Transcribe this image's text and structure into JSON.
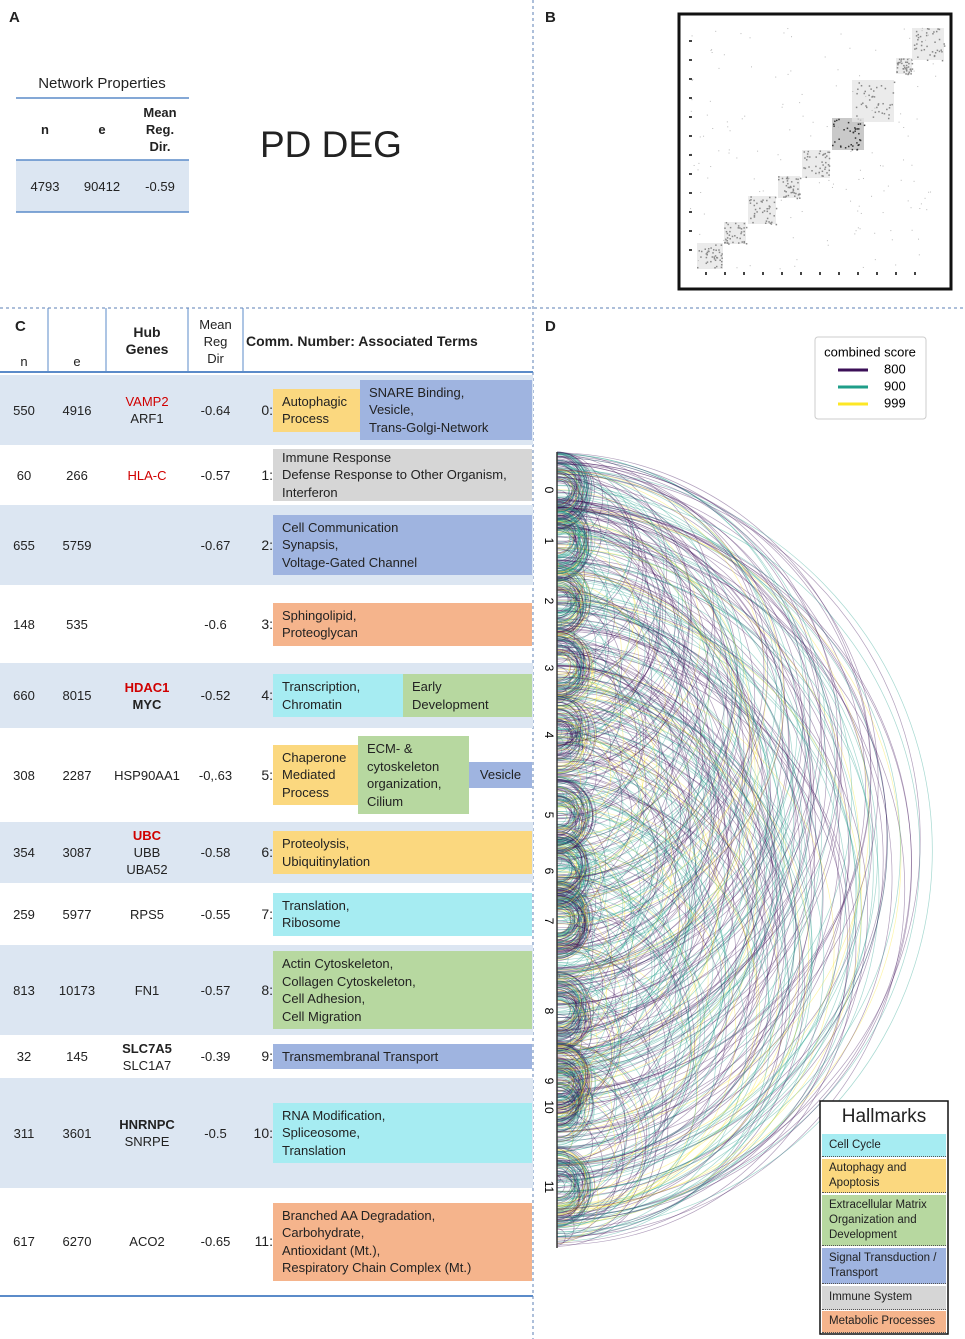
{
  "panel_a": {
    "label": "A",
    "table_title": "Network Properties",
    "headers": [
      [
        "n"
      ],
      [
        "e"
      ],
      [
        "Mean",
        "Reg.",
        "Dir."
      ]
    ],
    "values": [
      4793,
      90412,
      -0.59
    ],
    "network_name": "PD DEG"
  },
  "panel_b": {
    "label": "B"
  },
  "panel_c": {
    "label": "C",
    "headers": {
      "n": "n",
      "e": "e",
      "hub": [
        "Hub",
        "Genes"
      ],
      "mean": [
        "Mean",
        "Reg",
        "Dir"
      ],
      "terms": "Comm. Number: Associated Terms"
    },
    "rows": [
      {
        "n": 550,
        "e": 4916,
        "hub_genes": [
          {
            "name": "VAMP2",
            "style": "red"
          },
          {
            "name": "ARF1",
            "style": "normal"
          }
        ],
        "mean_reg_dir": -0.64,
        "comm": "0:",
        "terms": [
          {
            "lines": [
              "Autophagic",
              "Process"
            ],
            "hallmark": 1
          },
          {
            "lines": [
              "SNARE Binding,",
              "Vesicle,",
              "Trans-Golgi-Network"
            ],
            "hallmark": 3
          }
        ]
      },
      {
        "n": 60,
        "e": 266,
        "hub_genes": [
          {
            "name": "HLA-C",
            "style": "red"
          }
        ],
        "mean_reg_dir": -0.57,
        "comm": "1:",
        "terms": [
          {
            "lines": [
              "Immune Response",
              "Defense Response to Other Organism,",
              "Interferon"
            ],
            "hallmark": 4
          }
        ]
      },
      {
        "n": 655,
        "e": 5759,
        "hub_genes": [],
        "mean_reg_dir": -0.67,
        "comm": "2:",
        "terms": [
          {
            "lines": [
              "Cell Communication",
              "Synapsis,",
              "Voltage-Gated Channel"
            ],
            "hallmark": 3
          }
        ]
      },
      {
        "n": 148,
        "e": 535,
        "hub_genes": [],
        "mean_reg_dir": -0.6,
        "comm": "3:",
        "terms": [
          {
            "lines": [
              "Sphingolipid,",
              "Proteoglycan"
            ],
            "hallmark": 5
          }
        ]
      },
      {
        "n": 660,
        "e": 8015,
        "hub_genes": [
          {
            "name": "HDAC1",
            "style": "red-bold"
          },
          {
            "name": "MYC",
            "style": "bold"
          }
        ],
        "mean_reg_dir": -0.52,
        "comm": "4:",
        "terms": [
          {
            "lines": [
              "Transcription,",
              "Chromatin"
            ],
            "hallmark": 0
          },
          {
            "lines": [
              "Early",
              "Development"
            ],
            "hallmark": 2
          }
        ]
      },
      {
        "n": 308,
        "e": 2287,
        "hub_genes": [
          {
            "name": "HSP90AA1",
            "style": "normal"
          }
        ],
        "mean_reg_dir": "-0,.63",
        "comm": "5:",
        "terms": [
          {
            "lines": [
              "Chaperone",
              "Mediated",
              "Process"
            ],
            "hallmark": 1
          },
          {
            "lines": [
              "ECM- &",
              "cytoskeleton",
              "organization,",
              "Cilium"
            ],
            "hallmark": 2
          },
          {
            "lines": [
              "Vesicle"
            ],
            "hallmark": 3
          }
        ]
      },
      {
        "n": 354,
        "e": 3087,
        "hub_genes": [
          {
            "name": "UBC",
            "style": "red-bold"
          },
          {
            "name": "UBB",
            "style": "normal"
          },
          {
            "name": "UBA52",
            "style": "normal"
          }
        ],
        "mean_reg_dir": -0.58,
        "comm": "6:",
        "terms": [
          {
            "lines": [
              "Proteolysis,",
              "Ubiquitinylation"
            ],
            "hallmark": 1
          }
        ]
      },
      {
        "n": 259,
        "e": 5977,
        "hub_genes": [
          {
            "name": "RPS5",
            "style": "normal"
          }
        ],
        "mean_reg_dir": -0.55,
        "comm": "7:",
        "terms": [
          {
            "lines": [
              "Translation,",
              "Ribosome"
            ],
            "hallmark": 0
          }
        ]
      },
      {
        "n": 813,
        "e": 10173,
        "hub_genes": [
          {
            "name": "FN1",
            "style": "normal"
          }
        ],
        "mean_reg_dir": -0.57,
        "comm": "8:",
        "terms": [
          {
            "lines": [
              "Actin Cytoskeleton,",
              "Collagen Cytoskeleton,",
              "Cell Adhesion,",
              "Cell Migration"
            ],
            "hallmark": 2
          }
        ]
      },
      {
        "n": 32,
        "e": 145,
        "hub_genes": [
          {
            "name": "SLC7A5",
            "style": "bold"
          },
          {
            "name": "SLC1A7",
            "style": "normal"
          }
        ],
        "mean_reg_dir": -0.39,
        "comm": "9:",
        "terms": [
          {
            "lines": [
              "Transmembranal Transport"
            ],
            "hallmark": 3
          }
        ]
      },
      {
        "n": 311,
        "e": 3601,
        "hub_genes": [
          {
            "name": "HNRNPC",
            "style": "bold"
          },
          {
            "name": "SNRPE",
            "style": "normal"
          }
        ],
        "mean_reg_dir": -0.5,
        "comm": "10:",
        "terms": [
          {
            "lines": [
              "RNA Modification,",
              "Spliceosome,",
              "Translation"
            ],
            "hallmark": 0
          }
        ]
      },
      {
        "n": 617,
        "e": 6270,
        "hub_genes": [
          {
            "name": "ACO2",
            "style": "normal"
          }
        ],
        "mean_reg_dir": -0.65,
        "comm": "11:",
        "terms": [
          {
            "lines": [
              "Branched AA Degradation,",
              "Carbohydrate,",
              "Antioxidant (Mt.),",
              "Respiratory Chain Complex (Mt.)"
            ],
            "hallmark": 5
          }
        ]
      }
    ]
  },
  "panel_d": {
    "label": "D",
    "score_legend": {
      "title": "combined score",
      "items": [
        {
          "value": 800,
          "color": "#3b0f57"
        },
        {
          "value": 900,
          "color": "#1f9e89"
        },
        {
          "value": 999,
          "color": "#fde725"
        }
      ]
    },
    "community_labels": [
      "0",
      "1",
      "2",
      "3",
      "4",
      "5",
      "6",
      "7",
      "8",
      "9",
      "10",
      "11"
    ],
    "hallmarks": {
      "title": "Hallmarks",
      "items": [
        {
          "lines": [
            "Cell Cycle"
          ],
          "color": "#a6ecf2"
        },
        {
          "lines": [
            "Autophagy and",
            "Apoptosis"
          ],
          "color": "#fbd87f"
        },
        {
          "lines": [
            "Extracellular Matrix",
            "Organization and",
            "Development"
          ],
          "color": "#b7d8a0"
        },
        {
          "lines": [
            "Signal Transduction /",
            "Transport"
          ],
          "color": "#9fb4e0"
        },
        {
          "lines": [
            "Immune System"
          ],
          "color": "#d6d6d6"
        },
        {
          "lines": [
            "Metabolic Processes"
          ],
          "color": "#f5b48c"
        }
      ]
    }
  }
}
